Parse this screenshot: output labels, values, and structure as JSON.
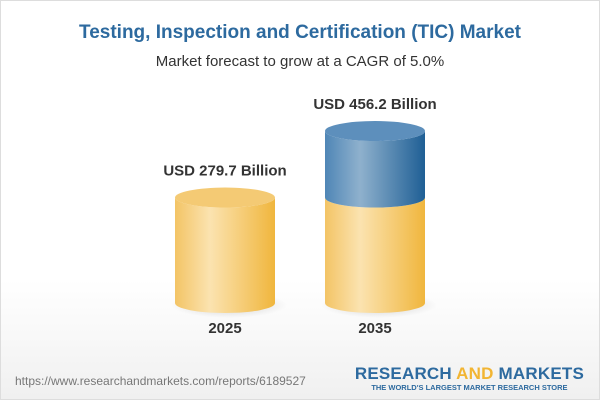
{
  "title": "Testing, Inspection and Certification (TIC) Market",
  "subtitle": "Market forecast to grow at a CAGR of 5.0%",
  "chart_data": {
    "type": "bar",
    "style": "3d-cylinder",
    "categories": [
      "2025",
      "2035"
    ],
    "values": [
      279.7,
      456.2
    ],
    "data_labels": [
      "USD 279.7 Billion",
      "USD 456.2 Billion"
    ],
    "unit": "USD Billion",
    "colors": {
      "base": "#f2c462",
      "growth": "#3f79aa"
    }
  },
  "footer": {
    "url": "https://www.researchandmarkets.com/reports/6189527",
    "logo_part1": "RESEARCH ",
    "logo_part2": "AND",
    "logo_part3": " MARKETS",
    "tagline": "THE WORLD'S LARGEST MARKET RESEARCH STORE"
  }
}
